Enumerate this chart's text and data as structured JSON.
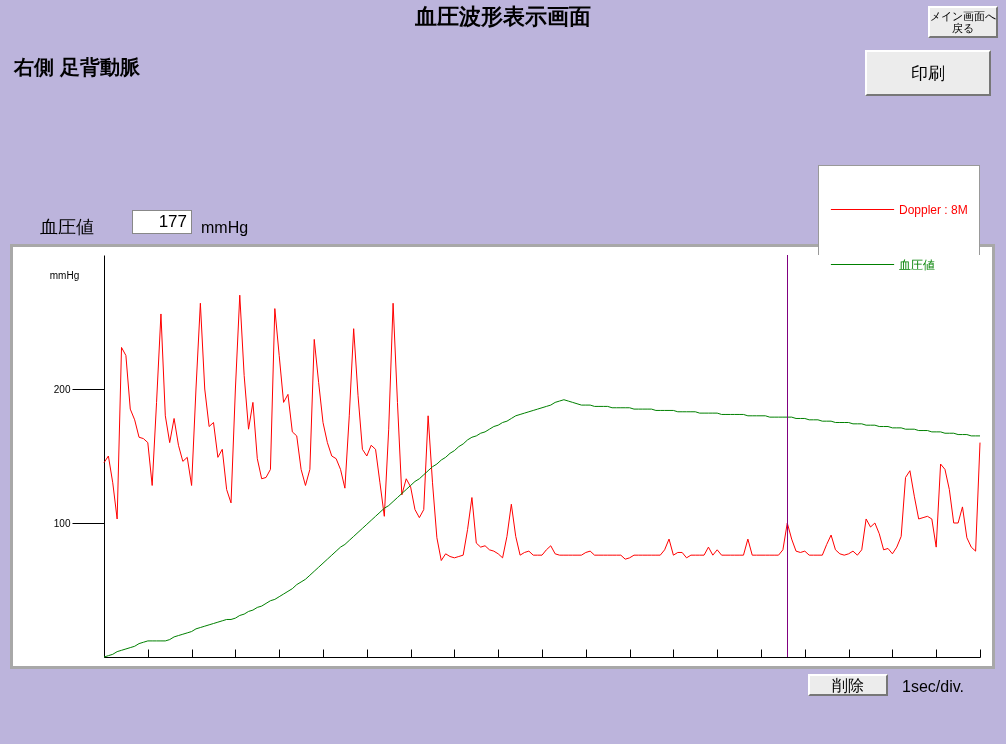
{
  "chart_data": {
    "type": "line",
    "title": "血圧波形表示画面",
    "subtitle": "右側 足背動脈",
    "ylabel": "mmHg",
    "annotations": [
      "血圧値",
      "177",
      "mmHg",
      "メイン画面へ戻る",
      "印刷",
      "削除",
      "1sec/div."
    ],
    "categories": [
      null,
      null,
      null,
      null,
      null,
      null,
      null,
      null,
      null,
      null,
      null,
      null,
      null,
      null,
      null,
      null,
      null,
      null,
      null,
      null,
      null,
      null,
      null,
      null,
      null,
      null,
      null,
      null,
      null,
      null,
      null,
      null,
      null,
      null,
      null,
      null,
      null,
      null,
      null,
      null,
      null,
      null,
      null,
      null,
      null,
      null,
      null,
      null,
      null,
      null,
      null,
      null,
      null,
      null,
      null,
      null,
      null,
      null,
      null,
      null,
      null,
      null,
      null,
      null,
      null,
      null,
      null,
      null,
      null,
      null,
      null,
      null,
      null,
      null,
      null,
      null,
      null,
      null,
      null,
      null,
      null,
      null,
      null,
      null,
      null,
      null,
      null,
      null,
      null,
      null,
      null,
      null,
      null,
      null,
      null,
      null,
      null,
      null,
      null,
      null,
      null,
      null,
      null,
      null,
      null,
      null,
      null,
      null,
      null,
      null,
      null,
      null,
      null,
      null,
      null,
      null,
      null,
      null,
      null,
      null,
      null,
      null,
      null,
      null,
      null,
      null,
      null,
      null,
      null,
      null,
      null,
      null,
      null,
      null,
      null,
      null,
      null,
      null,
      null,
      null,
      null,
      null,
      null,
      null,
      null,
      null,
      null,
      null,
      null,
      null,
      null,
      null,
      null,
      null,
      null,
      null,
      null,
      null,
      null,
      null,
      null,
      null,
      null,
      null,
      null,
      null,
      null,
      null,
      null,
      null,
      null,
      null,
      null,
      null,
      null,
      null,
      null,
      null,
      null,
      null,
      null,
      null,
      null,
      null,
      null,
      null,
      null,
      null,
      null,
      null,
      null,
      null,
      null,
      null,
      null,
      null,
      null,
      null,
      null,
      null,
      null
    ],
    "ylim": [
      0,
      300
    ],
    "yticks": [
      100,
      200
    ],
    "tick_labels": "y",
    "legend": "top right",
    "line_style": "solid",
    "series": [
      {
        "name": "Doppler : 8M",
        "color": "#ff0000",
        "values": [
          145,
          150,
          130,
          103,
          231,
          225,
          185,
          177,
          164,
          163,
          160,
          128,
          190,
          256,
          180,
          160,
          178,
          158,
          146,
          149,
          128,
          200,
          264,
          200,
          172,
          175,
          149,
          155,
          125,
          115,
          200,
          270,
          210,
          170,
          190,
          148,
          133,
          134,
          140,
          260,
          225,
          190,
          196,
          168,
          165,
          140,
          128,
          140,
          237,
          205,
          175,
          160,
          150,
          148,
          140,
          126,
          180,
          245,
          195,
          155,
          150,
          158,
          155,
          130,
          105,
          170,
          264,
          190,
          121,
          133,
          127,
          110,
          104,
          110,
          180,
          130,
          89,
          72,
          77,
          75,
          74,
          75,
          76,
          95,
          119,
          85,
          82,
          83,
          80,
          79,
          77,
          74,
          90,
          114,
          90,
          76,
          78,
          79,
          76,
          76,
          76,
          80,
          83,
          77,
          76,
          76,
          76,
          76,
          76,
          76,
          78,
          79,
          76,
          76,
          76,
          76,
          76,
          76,
          76,
          73,
          74,
          76,
          76,
          76,
          76,
          76,
          76,
          76,
          80,
          88,
          76,
          78,
          78,
          74,
          76,
          76,
          76,
          76,
          82,
          76,
          80,
          76,
          76,
          76,
          76,
          76,
          76,
          88,
          76,
          76,
          76,
          76,
          76,
          76,
          76,
          80,
          100,
          88,
          79,
          78,
          79,
          76,
          76,
          76,
          76,
          84,
          91,
          80,
          77,
          76,
          77,
          79,
          76,
          80,
          103,
          97,
          100,
          92,
          80,
          81,
          77,
          82,
          90,
          134,
          139,
          120,
          103,
          104,
          105,
          103,
          82,
          144,
          140,
          125,
          100,
          100,
          112,
          89,
          82,
          79,
          160
        ]
      },
      {
        "name": "血圧値",
        "color": "#008000",
        "values": [
          0,
          1,
          2,
          4,
          5,
          6,
          7,
          8,
          10,
          11,
          12,
          12,
          12,
          12,
          12,
          13,
          15,
          16,
          17,
          18,
          19,
          21,
          22,
          23,
          24,
          25,
          26,
          27,
          28,
          28,
          29,
          31,
          32,
          34,
          35,
          37,
          38,
          40,
          42,
          43,
          45,
          47,
          49,
          51,
          54,
          56,
          58,
          61,
          64,
          67,
          70,
          73,
          76,
          79,
          82,
          84,
          87,
          90,
          93,
          96,
          99,
          102,
          105,
          108,
          111,
          113,
          116,
          119,
          122,
          125,
          128,
          131,
          133,
          136,
          139,
          142,
          144,
          147,
          149,
          152,
          154,
          157,
          159,
          162,
          164,
          165,
          167,
          168,
          170,
          172,
          173,
          175,
          176,
          178,
          180,
          181,
          182,
          183,
          184,
          185,
          186,
          187,
          188,
          190,
          191,
          192,
          191,
          190,
          189,
          188,
          188,
          188,
          187,
          187,
          187,
          187,
          186,
          186,
          186,
          186,
          186,
          185,
          185,
          185,
          185,
          185,
          184,
          184,
          184,
          184,
          184,
          183,
          183,
          183,
          183,
          183,
          182,
          182,
          182,
          182,
          182,
          181,
          181,
          181,
          181,
          181,
          181,
          180,
          180,
          180,
          180,
          180,
          179,
          179,
          179,
          179,
          179,
          179,
          178,
          178,
          178,
          177,
          177,
          177,
          176,
          176,
          176,
          175,
          175,
          175,
          175,
          174,
          174,
          174,
          173,
          173,
          173,
          172,
          172,
          172,
          171,
          171,
          171,
          170,
          170,
          170,
          169,
          169,
          169,
          168,
          168,
          168,
          167,
          167,
          167,
          166,
          166,
          166,
          165,
          165,
          165
        ]
      }
    ]
  }
}
